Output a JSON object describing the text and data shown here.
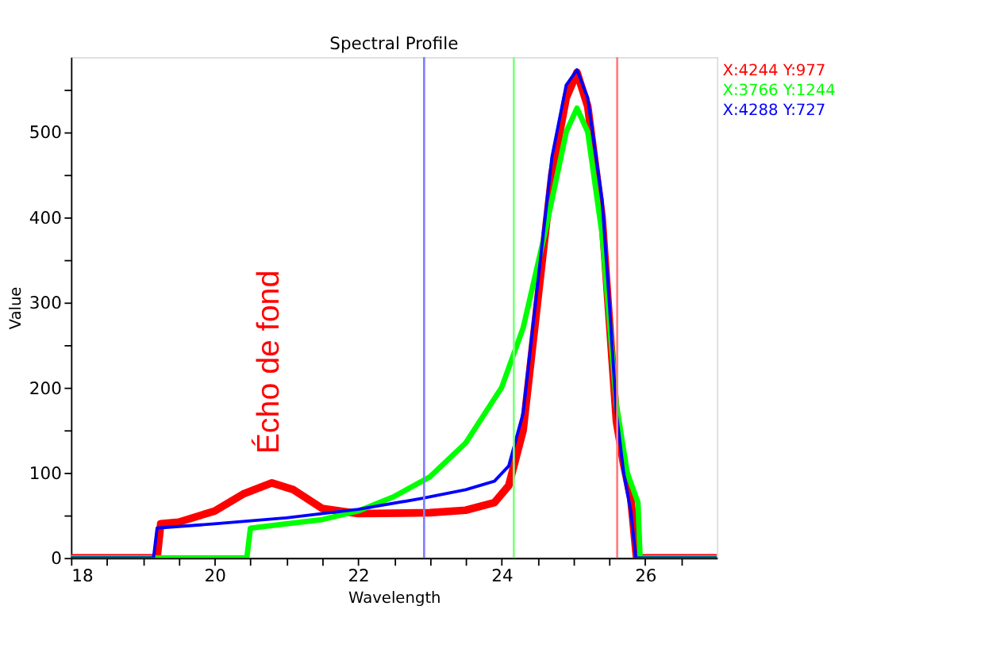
{
  "chart_data": {
    "type": "line",
    "title": "Spectral Profile",
    "xlabel": "Wavelength",
    "ylabel": "Value",
    "xlim": [
      18,
      27
    ],
    "ylim": [
      0,
      588
    ],
    "xticks": [
      18,
      {
        "value": 18.5,
        "label": null
      },
      {
        "value": 19,
        "label": null
      },
      {
        "value": 19.5,
        "label": null
      },
      20,
      {
        "value": 20.5,
        "label": null
      },
      {
        "value": 21,
        "label": null
      },
      {
        "value": 21.5,
        "label": null
      },
      22,
      {
        "value": 22.5,
        "label": null
      },
      {
        "value": 23,
        "label": null
      },
      {
        "value": 23.5,
        "label": null
      },
      24,
      {
        "value": 24.5,
        "label": null
      },
      {
        "value": 25,
        "label": null
      },
      {
        "value": 25.5,
        "label": null
      },
      26,
      {
        "value": 26.5,
        "label": null
      }
    ],
    "yticks": [
      0,
      {
        "value": 50,
        "label": null
      },
      100,
      {
        "value": 150,
        "label": null
      },
      200,
      {
        "value": 250,
        "label": null
      },
      300,
      {
        "value": 350,
        "label": null
      },
      400,
      {
        "value": 450,
        "label": null
      },
      500,
      {
        "value": 550,
        "label": null
      }
    ],
    "grid": false,
    "legend": "top right",
    "marker": "none",
    "line_style": "solid",
    "series": [
      {
        "name": "X:4244 Y:977",
        "color": "#ff0000",
        "x": [
          18,
          19.2,
          19.25,
          19.5,
          20,
          20.4,
          20.8,
          21.1,
          21.5,
          22,
          23,
          23.5,
          23.9,
          24.1,
          24.3,
          24.5,
          24.7,
          24.9,
          25.05,
          25.2,
          25.4,
          25.5,
          25.6,
          25.7,
          25.8,
          25.88,
          27
        ],
        "values": [
          0,
          0,
          40,
          42,
          55,
          75,
          88,
          80,
          58,
          52,
          53,
          56,
          65,
          85,
          150,
          300,
          450,
          540,
          570,
          530,
          400,
          280,
          160,
          110,
          70,
          0,
          0
        ]
      },
      {
        "name": "X:3766 Y:1244",
        "color": "#00ff00",
        "x": [
          18,
          20.45,
          20.5,
          21,
          21.5,
          22,
          22.5,
          23,
          23.5,
          24,
          24.3,
          24.6,
          24.9,
          25.05,
          25.2,
          25.4,
          25.6,
          25.75,
          25.9,
          25.93,
          27
        ],
        "values": [
          0,
          0,
          35,
          40,
          45,
          55,
          72,
          95,
          135,
          200,
          270,
          380,
          500,
          528,
          500,
          380,
          180,
          100,
          65,
          0,
          0
        ]
      },
      {
        "name": "X:4288 Y:727",
        "color": "#0000ff",
        "x": [
          18,
          19.15,
          19.2,
          20,
          21,
          22,
          22.9,
          23.5,
          23.9,
          24.1,
          24.3,
          24.5,
          24.7,
          24.9,
          25.05,
          25.2,
          25.4,
          25.5,
          25.6,
          25.7,
          25.8,
          25.87,
          27
        ],
        "values": [
          0,
          0,
          35,
          40,
          47,
          57,
          70,
          80,
          90,
          108,
          170,
          320,
          470,
          555,
          573,
          540,
          420,
          300,
          170,
          100,
          55,
          0,
          0
        ]
      }
    ],
    "ref_lines": [
      {
        "axis": "x",
        "value": 22.92,
        "label": null,
        "color": "#7f7fff"
      },
      {
        "axis": "x",
        "value": 24.17,
        "label": null,
        "color": "#7fff7f"
      },
      {
        "axis": "x",
        "value": 25.61,
        "label": null,
        "color": "#ff7f7f"
      }
    ],
    "annotations": [
      "Écho de fond"
    ]
  }
}
